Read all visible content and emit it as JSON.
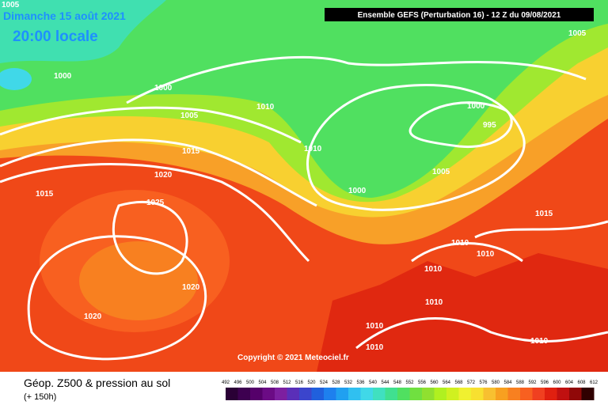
{
  "header": {
    "date": "Dimanche 15 août 2021",
    "time": "20:00 locale",
    "run": "Ensemble GEFS  (Perturbation 16)  -  12 Z du 09/08/2021"
  },
  "isobars": [
    1005,
    1000,
    1005,
    1000,
    1005,
    1010,
    1010,
    1000,
    995,
    1015,
    1020,
    1005,
    1015,
    1000,
    1025,
    1015,
    1010,
    1010,
    1020,
    1010,
    1010,
    1020,
    1010,
    1010,
    1010
  ],
  "copyright": "Copyright © 2021 Meteociel.fr",
  "footer": {
    "title": "Géop. Z500 & pression au sol",
    "lead": "(+ 150h)"
  },
  "legend": {
    "values": [
      492,
      496,
      500,
      504,
      508,
      512,
      516,
      520,
      524,
      528,
      532,
      536,
      540,
      544,
      548,
      552,
      556,
      560,
      564,
      568,
      572,
      576,
      580,
      584,
      588,
      592,
      596,
      600,
      604,
      608,
      612
    ],
    "colors": [
      "#2a0035",
      "#3d0050",
      "#55006a",
      "#6b0b85",
      "#7d1fa0",
      "#5a2fb8",
      "#3b45cc",
      "#2060dd",
      "#1e80ee",
      "#20a0f0",
      "#30c0f0",
      "#40d8e8",
      "#40e0c0",
      "#40e090",
      "#50e060",
      "#70e040",
      "#90e030",
      "#b0f020",
      "#d0f020",
      "#f0f030",
      "#f8e030",
      "#f8c030",
      "#f8a020",
      "#f88020",
      "#f86020",
      "#f04020",
      "#e02010",
      "#c01010",
      "#900808",
      "#300000"
    ]
  }
}
